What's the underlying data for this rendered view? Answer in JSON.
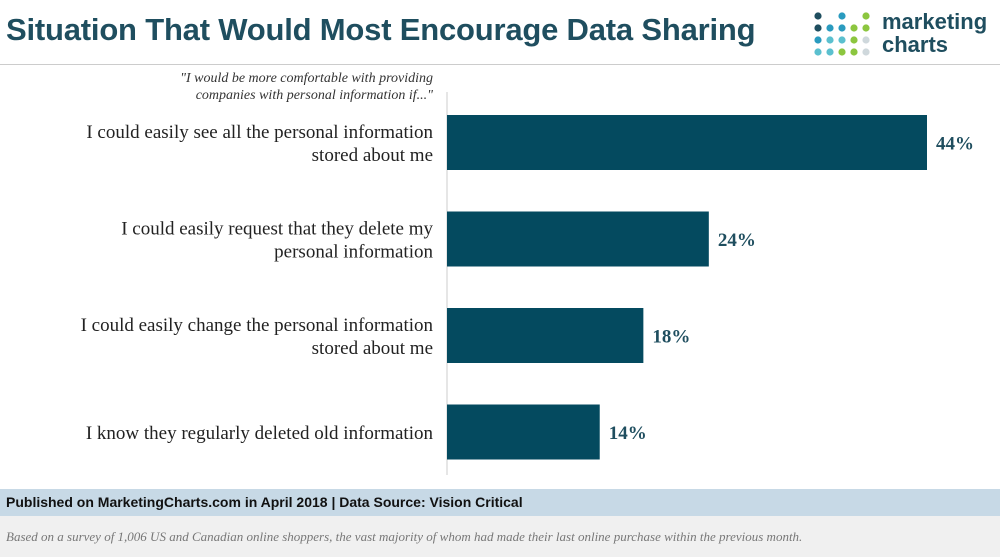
{
  "title": "Situation That Would Most Encourage Data Sharing",
  "logo": {
    "line1": "marketing",
    "line2": "charts"
  },
  "subtitle": {
    "line1": "\"I would be more comfortable with providing",
    "line2": "companies with personal information if...\""
  },
  "chart_data": {
    "type": "bar",
    "orientation": "horizontal",
    "categories": [
      [
        "I could easily see all the personal information",
        "stored about me"
      ],
      [
        "I could easily request that they delete my",
        "personal information"
      ],
      [
        "I could easily change the personal information",
        "stored about me"
      ],
      [
        "I know they regularly deleted old information"
      ]
    ],
    "values": [
      44,
      24,
      18,
      14
    ],
    "value_labels": [
      "44%",
      "24%",
      "18%",
      "14%"
    ],
    "xlim": [
      0,
      44
    ],
    "grid": false,
    "bar_color": "#044a5f"
  },
  "footer": {
    "published": "Published on MarketingCharts.com in April 2018 | Data Source: Vision Critical",
    "note": "Based on a survey of 1,006 US and Canadian online shoppers, the vast majority of whom had made their last online purchase within the previous month."
  },
  "colors": {
    "title": "#1f4e5f",
    "bar": "#044a5f",
    "footer_bar": "#c7d9e6",
    "logo_dots": [
      "#1f4e5f",
      "#2a9bbf",
      "#5bc0cf",
      "#8cc63f",
      "#cfd8dc"
    ]
  }
}
